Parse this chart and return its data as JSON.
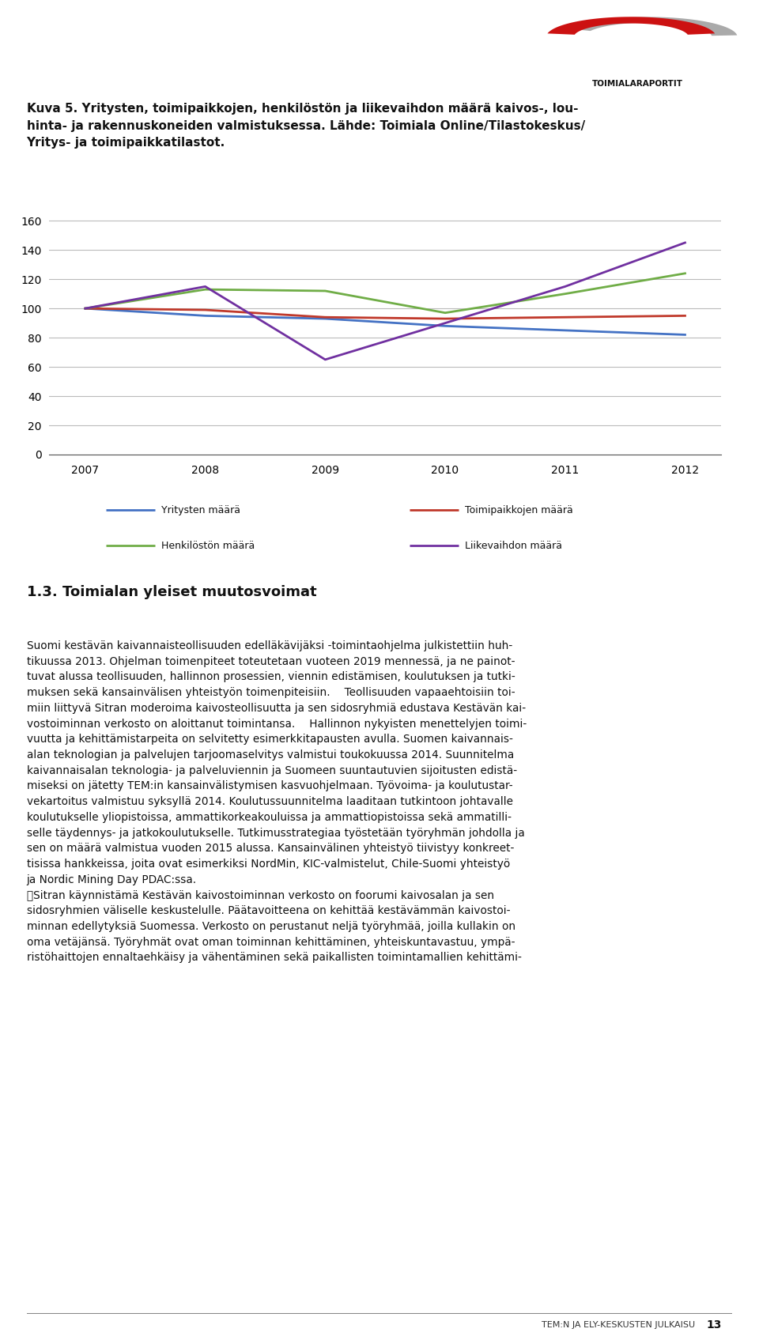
{
  "years": [
    2007,
    2008,
    2009,
    2010,
    2011,
    2012
  ],
  "series_order": [
    "Yritysten määrä",
    "Toimipaikkojen määrä",
    "Henkilöstön määrä",
    "Liikevaihdon määrä"
  ],
  "series": {
    "Yritysten määrä": {
      "values": [
        100,
        95,
        93,
        88,
        85,
        82
      ],
      "color": "#4472C4"
    },
    "Toimipaikkojen määrä": {
      "values": [
        100,
        99,
        94,
        93,
        94,
        95
      ],
      "color": "#C0392B"
    },
    "Henkilöstön määrä": {
      "values": [
        100,
        113,
        112,
        97,
        110,
        124
      ],
      "color": "#70AD47"
    },
    "Liikevaihdon määrä": {
      "values": [
        100,
        115,
        65,
        90,
        115,
        145
      ],
      "color": "#7030A0"
    }
  },
  "ylim": [
    0,
    165
  ],
  "yticks": [
    0,
    20,
    40,
    60,
    80,
    100,
    120,
    140,
    160
  ],
  "xlim": [
    2006.7,
    2012.3
  ],
  "background_color": "#FFFFFF",
  "grid_color": "#BBBBBB",
  "title_text_line1": "Kuva 5. Yritysten, toimipaikkojen, henkilöstön ja liikevaihdon määrä kaivos-, lou-",
  "title_text_line2": "hinta- ja rakennuskoneiden valmistuksessa. Lähde: Toimiala Online/Tilastokeskus/",
  "title_text_line3": "Yritys- ja toimipaikkatilastot.",
  "section_title": "1.3. Toimialan yleiset muutosvoimat",
  "body_lines": [
    "Suomi kestävän kaivannaisteollisuuden edelläkävijäksi -toimintaohjelma julkistettiin huh-",
    "tikuussa 2013. Ohjelman toimenpiteet toteutetaan vuoteen 2019 mennessä, ja ne painot-",
    "tuvat alussa teollisuuden, hallinnon prosessien, viennin edistämisen, koulutuksen ja tutki-",
    "muksen sekä kansainvälisen yhteistyön toimenpiteisiin.  Teollisuuden vapaaehtoisiin toi-",
    "miin liittyvä Sitran moderoima kaivosteollisuutta ja sen sidosryhmiä edustava Kestävän kai-",
    "vostoiminnan verkosto on aloittanut toimintansa.  Hallinnon nykyisten menettelyjen toimi-",
    "vuutta ja kehittämistarpeita on selvitetty esimerkkitapausten avulla. Suomen kaivannais-",
    "alan teknologian ja palvelujen tarjoomaselvitys valmistui toukokuussa 2014. Suunnitelma",
    "kaivannaisalan teknologia- ja palveluviennin ja Suomeen suuntautuvien sijoitusten edistä-",
    "miseksi on jätetty TEM:in kansainvälistymisen kasvuohjelmaan. Työvoima- ja koulutustar-",
    "vekartoitus valmistuu syksyllä 2014. Koulutussuunnitelma laaditaan tutkintoon johtavalle",
    "koulutukselle yliopistoissa, ammattikorkeakouluissa ja ammattiopistoissa sekä ammatilli-",
    "selle täydennys- ja jatkokoulutukselle. Tutkimusstrategiaa työstetään työryhmän johdolla ja",
    "sen on määrä valmistua vuoden 2015 alussa. Kansainvälinen yhteistyö tiivistyy konkreet-",
    "tisissa hankkeissa, joita ovat esimerkiksi NordMin, KIC-valmistelut, Chile-Suomi yhteistyö",
    "ja Nordic Mining Day PDAC:ssa.",
    "\tSitran käynnistämä Kestävän kaivostoiminnan verkosto on foorumi kaivosalan ja sen",
    "sidosryhmien väliselle keskustelulle. Päätavoitteena on kehittää kestävämmän kaivostoi-",
    "minnan edellytyksiä Suomessa. Verkosto on perustanut neljä työryhmää, joilla kullakin on",
    "oma vetäjänsä. Työryhmät ovat oman toiminnan kehittäminen, yhteiskuntavastuu, ympä-",
    "ristöhaittojen ennaltaehkäisy ja vähentäminen sekä paikallisten toimintamallien kehittämi-"
  ],
  "footer_text": "TEM:N JA ELY-KESKUSTEN JULKAISU",
  "footer_page": "13",
  "logo_text": "TOIMIALARAPORTIT",
  "linewidth": 2.0,
  "legend_fontsize": 9,
  "axis_fontsize": 10,
  "title_fontsize": 11,
  "section_fontsize": 13,
  "body_fontsize": 9.8
}
